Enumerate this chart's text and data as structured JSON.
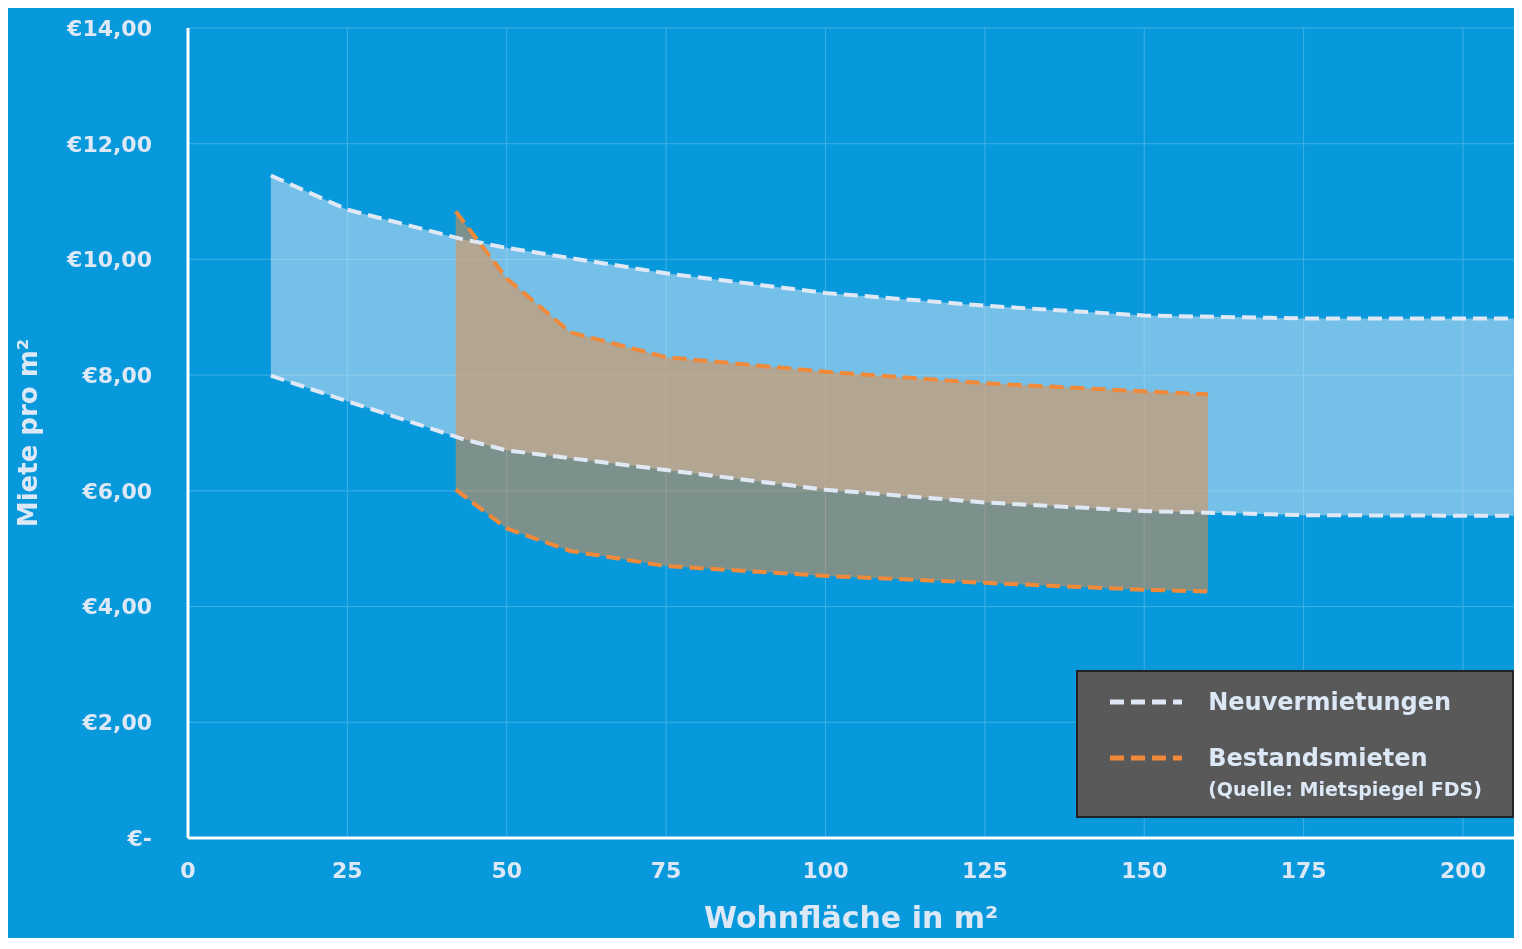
{
  "chart_data": {
    "type": "line",
    "xlabel": "Wohnfläche in m²",
    "ylabel": "Miete pro m²",
    "xlim": [
      0,
      208
    ],
    "xticks": [
      0,
      25,
      50,
      75,
      100,
      125,
      150,
      175,
      200
    ],
    "ylim": [
      0,
      14
    ],
    "yticks": [
      {
        "value": 0,
        "label": "€-"
      },
      {
        "value": 2,
        "label": "€2,00"
      },
      {
        "value": 4,
        "label": "€4,00"
      },
      {
        "value": 6,
        "label": "€6,00"
      },
      {
        "value": 8,
        "label": "€8,00"
      },
      {
        "value": 10,
        "label": "€10,00"
      },
      {
        "value": 12,
        "label": "€12,00"
      },
      {
        "value": 14,
        "label": "€14,00"
      }
    ],
    "grid": true,
    "legend": "bottom right",
    "line_style": "dashed",
    "annotations": [
      "(Quelle: Mietspiegel FDS)"
    ],
    "series": [
      {
        "name": "Neuvermietungen",
        "type": "area",
        "color": "#dfe8f4",
        "x": [
          13,
          25,
          43,
          50,
          75,
          100,
          125,
          150,
          175,
          200,
          208
        ],
        "values": [
          11.45,
          10.86,
          10.35,
          10.2,
          9.76,
          9.42,
          9.2,
          9.03,
          8.98,
          8.98,
          8.98
        ]
      },
      {
        "color": "#dfe8f4",
        "x": [
          13,
          25,
          43,
          50,
          75,
          100,
          125,
          150,
          175,
          200,
          208
        ],
        "values": [
          7.99,
          7.55,
          6.9,
          6.7,
          6.36,
          6.02,
          5.8,
          5.65,
          5.58,
          5.57,
          5.57
        ]
      },
      {
        "name": "Bestandsmieten",
        "type": "area",
        "color": "#f08a3a",
        "x": [
          42,
          50,
          60,
          75,
          100,
          125,
          150,
          160
        ],
        "values": [
          10.83,
          9.67,
          8.74,
          8.31,
          8.06,
          7.86,
          7.72,
          7.67
        ]
      },
      {
        "color": "#f08a3a",
        "x": [
          42,
          50,
          60,
          75,
          100,
          125,
          150,
          160
        ],
        "values": [
          6.02,
          5.35,
          4.96,
          4.7,
          4.53,
          4.41,
          4.29,
          4.26
        ]
      }
    ]
  }
}
